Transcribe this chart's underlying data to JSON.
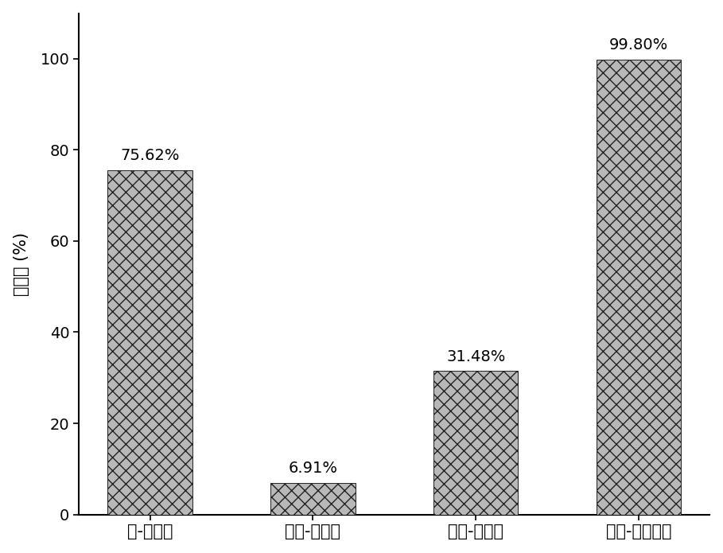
{
  "categories": [
    "碱-热处理",
    "超声-碱处理",
    "超声-热处理",
    "超声-碱热处理"
  ],
  "values": [
    75.62,
    6.91,
    31.48,
    99.8
  ],
  "labels": [
    "75.62%",
    "6.91%",
    "31.48%",
    "99.80%"
  ],
  "bar_color": "#b8b8b8",
  "bar_edgecolor": "#222222",
  "hatch": "xx",
  "ylabel": "降解率 (%)",
  "ylim": [
    0,
    110
  ],
  "yticks": [
    0,
    20,
    40,
    60,
    80,
    100
  ],
  "xlabel_fontsize": 15,
  "ylabel_fontsize": 15,
  "tick_fontsize": 14,
  "label_fontsize": 14,
  "bar_width": 0.52,
  "figure_width": 9.09,
  "figure_height": 6.95,
  "dpi": 100
}
